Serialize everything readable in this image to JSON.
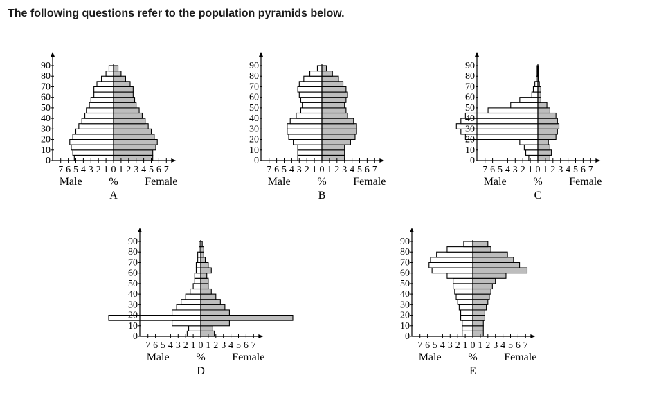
{
  "header": {
    "title": "The following questions refer to the population pyramids below."
  },
  "chart_data": [
    {
      "type": "bar",
      "letter": "A",
      "categories": [
        "0",
        "5",
        "10",
        "15",
        "20",
        "25",
        "30",
        "35",
        "40",
        "45",
        "50",
        "55",
        "60",
        "65",
        "70",
        "75",
        "80",
        "85"
      ],
      "series": [
        {
          "name": "Male",
          "values": [
            5.2,
            5.4,
            5.6,
            5.8,
            5.4,
            5.0,
            4.6,
            4.2,
            3.8,
            3.6,
            3.2,
            3.0,
            2.6,
            2.6,
            2.2,
            1.6,
            1.0,
            0.6
          ]
        },
        {
          "name": "Female",
          "values": [
            5.2,
            5.2,
            5.6,
            5.8,
            5.4,
            5.0,
            4.6,
            4.2,
            3.8,
            3.4,
            3.0,
            2.8,
            2.6,
            2.6,
            2.2,
            1.6,
            1.0,
            0.6
          ]
        }
      ],
      "y_ticks": [
        "0",
        "10",
        "20",
        "30",
        "40",
        "50",
        "60",
        "70",
        "80",
        "90"
      ],
      "x_ticks": [
        "7",
        "6",
        "5",
        "4",
        "3",
        "2",
        "1",
        "0",
        "1",
        "2",
        "3",
        "4",
        "5",
        "6",
        "7"
      ],
      "xlabel": {
        "left": "Male",
        "center": "%",
        "right": "Female"
      },
      "ylim": [
        0,
        90
      ],
      "xlim": [
        -7,
        7
      ]
    },
    {
      "type": "bar",
      "letter": "B",
      "categories": [
        "0",
        "5",
        "10",
        "15",
        "20",
        "25",
        "30",
        "35",
        "40",
        "45",
        "50",
        "55",
        "60",
        "65",
        "70",
        "75",
        "80",
        "85"
      ],
      "series": [
        {
          "name": "Male",
          "values": [
            3.2,
            3.2,
            3.2,
            3.8,
            4.4,
            4.6,
            4.6,
            4.2,
            3.4,
            2.8,
            2.6,
            2.8,
            3.0,
            3.2,
            3.0,
            2.4,
            1.6,
            0.6
          ]
        },
        {
          "name": "Female",
          "values": [
            3.0,
            3.0,
            3.0,
            3.8,
            4.4,
            4.6,
            4.6,
            4.2,
            3.4,
            3.2,
            3.0,
            3.2,
            3.4,
            3.2,
            2.8,
            2.2,
            1.4,
            0.6
          ]
        }
      ],
      "y_ticks": [
        "0",
        "10",
        "20",
        "30",
        "40",
        "50",
        "60",
        "70",
        "80",
        "90"
      ],
      "x_ticks": [
        "7",
        "6",
        "5",
        "4",
        "3",
        "2",
        "1",
        "0",
        "1",
        "2",
        "3",
        "4",
        "5",
        "6",
        "7"
      ],
      "xlabel": {
        "left": "Male",
        "center": "%",
        "right": "Female"
      },
      "ylim": [
        0,
        90
      ],
      "xlim": [
        -7,
        7
      ]
    },
    {
      "type": "bar",
      "letter": "C",
      "categories": [
        "0",
        "5",
        "10",
        "15",
        "20",
        "25",
        "30",
        "35",
        "40",
        "45",
        "50",
        "55",
        "60",
        "65",
        "70",
        "75",
        "80",
        "85"
      ],
      "series": [
        {
          "name": "Male",
          "values": [
            1.2,
            1.6,
            1.8,
            2.4,
            9.6,
            10.2,
            10.8,
            10.2,
            9.6,
            6.6,
            3.6,
            2.4,
            0.8,
            0.6,
            0.4,
            0.2,
            0.1,
            0.1
          ]
        },
        {
          "name": "Female",
          "values": [
            1.6,
            1.8,
            1.6,
            1.4,
            2.4,
            2.6,
            2.8,
            2.6,
            2.4,
            1.6,
            1.2,
            0.4,
            0.4,
            0.4,
            0.2,
            0.1,
            0.1,
            0.1
          ]
        }
      ],
      "y_ticks": [
        "0",
        "10",
        "20",
        "30",
        "40",
        "50",
        "60",
        "70",
        "80",
        "90"
      ],
      "x_ticks": [
        "7",
        "6",
        "5",
        "4",
        "3",
        "2",
        "1",
        "0",
        "1",
        "2",
        "3",
        "4",
        "5",
        "6",
        "7"
      ],
      "xlabel": {
        "left": "Male",
        "center": "%",
        "right": "Female"
      },
      "ylim": [
        0,
        90
      ],
      "xlim": [
        -7,
        7
      ]
    },
    {
      "type": "bar",
      "letter": "D",
      "categories": [
        "0",
        "5",
        "10",
        "15",
        "20",
        "25",
        "30",
        "35",
        "40",
        "45",
        "50",
        "55",
        "60",
        "65",
        "70",
        "75",
        "80",
        "85"
      ],
      "series": [
        {
          "name": "Male",
          "values": [
            1.8,
            1.6,
            3.8,
            12.2,
            3.8,
            3.2,
            2.6,
            2.0,
            1.4,
            1.0,
            0.8,
            0.8,
            0.6,
            0.6,
            0.4,
            0.4,
            0.2,
            0.2
          ]
        },
        {
          "name": "Female",
          "values": [
            1.8,
            1.6,
            3.8,
            12.2,
            3.8,
            3.2,
            2.6,
            2.0,
            1.4,
            1.0,
            1.0,
            0.8,
            1.4,
            1.0,
            0.6,
            0.4,
            0.4,
            0.2
          ]
        }
      ],
      "y_ticks": [
        "0",
        "10",
        "20",
        "30",
        "40",
        "50",
        "60",
        "70",
        "80",
        "90"
      ],
      "x_ticks": [
        "7",
        "6",
        "5",
        "4",
        "3",
        "2",
        "1",
        "0",
        "1",
        "2",
        "3",
        "4",
        "5",
        "6",
        "7"
      ],
      "xlabel": {
        "left": "Male",
        "center": "%",
        "right": "Female"
      },
      "ylim": [
        0,
        90
      ],
      "xlim": [
        -7,
        7
      ]
    },
    {
      "type": "bar",
      "letter": "E",
      "categories": [
        "0",
        "5",
        "10",
        "15",
        "20",
        "25",
        "30",
        "35",
        "40",
        "45",
        "50",
        "55",
        "60",
        "65",
        "70",
        "75",
        "80",
        "85"
      ],
      "series": [
        {
          "name": "Male",
          "values": [
            1.4,
            1.4,
            1.4,
            1.6,
            1.6,
            1.8,
            2.0,
            2.2,
            2.4,
            2.6,
            2.6,
            3.4,
            5.4,
            5.8,
            5.6,
            4.8,
            3.4,
            1.2
          ]
        },
        {
          "name": "Female",
          "values": [
            1.4,
            1.4,
            1.4,
            1.6,
            1.6,
            1.8,
            2.0,
            2.2,
            2.4,
            2.6,
            3.0,
            4.4,
            7.2,
            6.2,
            5.4,
            4.6,
            2.4,
            2.0
          ]
        }
      ],
      "y_ticks": [
        "0",
        "10",
        "20",
        "30",
        "40",
        "50",
        "60",
        "70",
        "80",
        "90"
      ],
      "x_ticks": [
        "7",
        "6",
        "5",
        "4",
        "3",
        "2",
        "1",
        "0",
        "1",
        "2",
        "3",
        "4",
        "5",
        "6",
        "7"
      ],
      "xlabel": {
        "left": "Male",
        "center": "%",
        "right": "Female"
      },
      "ylim": [
        0,
        90
      ],
      "xlim": [
        -7,
        7
      ]
    }
  ]
}
